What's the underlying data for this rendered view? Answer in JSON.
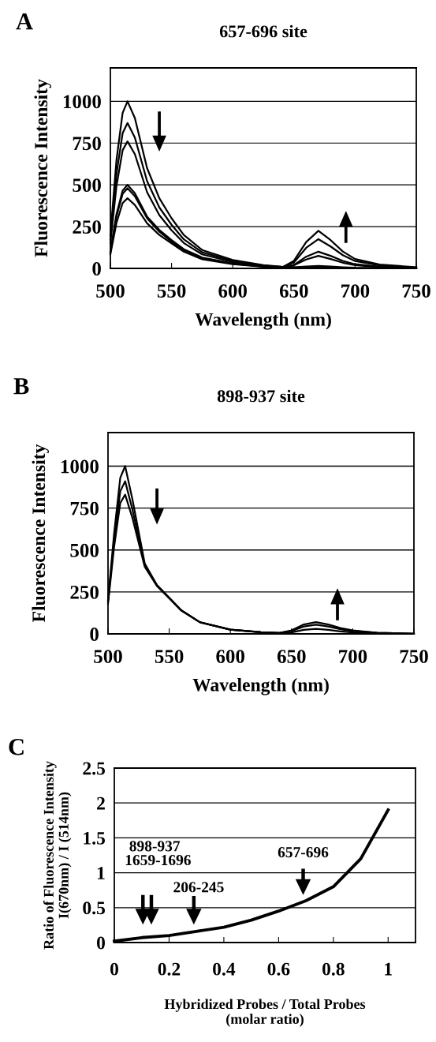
{
  "chart_data": [
    {
      "type": "line",
      "title": "657-696 site",
      "xlabel": "Wavelength (nm)",
      "ylabel": "Fluorescence Intensity",
      "annotations": [
        "A"
      ],
      "x": [
        500,
        505,
        510,
        514,
        520,
        530,
        540,
        550,
        560,
        575,
        600,
        625,
        640,
        650,
        660,
        670,
        680,
        690,
        700,
        720,
        750
      ],
      "series": [
        {
          "color": "#000000",
          "values": [
            200,
            650,
            930,
            1000,
            900,
            600,
            420,
            300,
            200,
            110,
            50,
            20,
            10,
            6,
            4,
            5,
            4,
            2,
            1,
            1,
            0
          ]
        },
        {
          "color": "#000000",
          "values": [
            174,
            566,
            809,
            870,
            783,
            522,
            365,
            261,
            174,
            96,
            44,
            17,
            9,
            7,
            11,
            15,
            11,
            7,
            4,
            2,
            0
          ]
        },
        {
          "color": "#000000",
          "values": [
            152,
            494,
            707,
            760,
            684,
            456,
            319,
            228,
            152,
            84,
            38,
            15,
            8,
            19,
            53,
            75,
            56,
            34,
            19,
            8,
            2
          ]
        },
        {
          "color": "#000000",
          "values": [
            100,
            325,
            465,
            500,
            450,
            310,
            230,
            170,
            115,
            65,
            30,
            12,
            6,
            20,
            70,
            100,
            75,
            45,
            25,
            10,
            3
          ]
        },
        {
          "color": "#000000",
          "values": [
            96,
            312,
            446,
            480,
            432,
            300,
            220,
            160,
            110,
            62,
            28,
            11,
            5,
            35,
            123,
            175,
            131,
            79,
            44,
            18,
            5
          ]
        },
        {
          "color": "#000000",
          "values": [
            84,
            273,
            391,
            420,
            380,
            270,
            200,
            150,
            100,
            55,
            25,
            10,
            5,
            45,
            158,
            225,
            169,
            101,
            56,
            23,
            7
          ]
        }
      ],
      "xlim": [
        500,
        750
      ],
      "xticks": [
        500,
        550,
        600,
        650,
        700,
        750
      ],
      "ylim": [
        0,
        1200
      ],
      "yticks": [
        0,
        250,
        500,
        750,
        1000
      ],
      "grid": "y",
      "line_style": "solid"
    },
    {
      "type": "line",
      "title": "898-937 site",
      "xlabel": "Wavelength (nm)",
      "ylabel": "Fluorescence Intensity",
      "annotations": [
        "B"
      ],
      "x": [
        500,
        505,
        510,
        514,
        520,
        530,
        540,
        550,
        560,
        575,
        600,
        625,
        640,
        650,
        660,
        670,
        680,
        690,
        700,
        720,
        750
      ],
      "series": [
        {
          "color": "#000000",
          "values": [
            200,
            600,
            930,
            1000,
            800,
            420,
            290,
            215,
            140,
            70,
            25,
            10,
            5,
            9,
            24,
            30,
            24,
            15,
            9,
            3,
            1
          ]
        },
        {
          "color": "#000000",
          "values": [
            190,
            560,
            850,
            910,
            740,
            410,
            290,
            215,
            140,
            70,
            25,
            10,
            5,
            17,
            44,
            55,
            44,
            28,
            17,
            6,
            1
          ]
        },
        {
          "color": "#000000",
          "values": [
            180,
            520,
            780,
            830,
            690,
            400,
            285,
            212,
            138,
            70,
            25,
            10,
            5,
            21,
            56,
            70,
            56,
            35,
            21,
            7,
            1
          ]
        }
      ],
      "xlim": [
        500,
        750
      ],
      "xticks": [
        500,
        550,
        600,
        650,
        700,
        750
      ],
      "ylim": [
        0,
        1200
      ],
      "yticks": [
        0,
        250,
        500,
        750,
        1000
      ],
      "grid": "y",
      "line_style": "solid"
    },
    {
      "type": "line",
      "xlabel": "Hybridized Probes / Total Probes\n(molar ratio)",
      "ylabel": "Ratio of Fluorescence Intensity\nI(670nm) / I (514nm)",
      "annotations": [
        "C",
        "898-937",
        "1659-1696",
        "206-245",
        "657-696"
      ],
      "x": [
        0,
        0.1,
        0.2,
        0.3,
        0.4,
        0.5,
        0.6,
        0.7,
        0.8,
        0.9,
        1
      ],
      "series": [
        {
          "color": "#000000",
          "values": [
            0.02,
            0.07,
            0.1,
            0.16,
            0.22,
            0.32,
            0.45,
            0.6,
            0.8,
            1.2,
            1.9
          ]
        }
      ],
      "xlim": [
        0,
        1.1
      ],
      "xticks": [
        0,
        0.2,
        0.4,
        0.6,
        0.8,
        1
      ],
      "ylim": [
        0,
        2.5
      ],
      "yticks": [
        0,
        0.5,
        1,
        1.5,
        2,
        2.5
      ],
      "grid": "y",
      "line_style": "solid"
    }
  ]
}
